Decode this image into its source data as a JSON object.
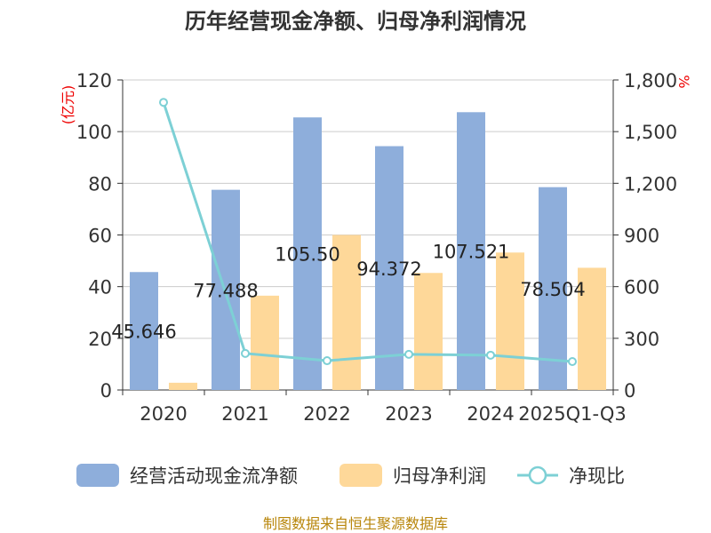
{
  "chart_data": {
    "type": "bar+line",
    "title": "历年经营现金净额、归母净利润情况",
    "categories": [
      "2020",
      "2021",
      "2022",
      "2023",
      "2024",
      "2025Q1-Q3"
    ],
    "series": [
      {
        "name": "经营活动现金流净额",
        "type": "bar",
        "axis": "left",
        "color": "#8eaedb",
        "values": [
          45.646,
          77.488,
          105.5,
          94.372,
          107.521,
          78.504
        ],
        "labels": [
          "45.646",
          "77.488",
          "105.50",
          "94.372",
          "107.521",
          "78.504"
        ]
      },
      {
        "name": "归母净利润",
        "type": "bar",
        "axis": "left",
        "color": "#fed899",
        "values": [
          2.8,
          36.5,
          60.0,
          45.3,
          53.2,
          47.3
        ]
      },
      {
        "name": "净现比",
        "type": "line",
        "axis": "right",
        "color": "#7dd0d5",
        "values": [
          1670,
          212,
          170,
          207,
          202,
          165
        ]
      }
    ],
    "left_axis": {
      "unit": "(亿元)",
      "ylim": [
        0,
        120
      ],
      "ticks": [
        0,
        20,
        40,
        60,
        80,
        100,
        120
      ]
    },
    "right_axis": {
      "unit": "%",
      "ylim": [
        0,
        1800
      ],
      "ticks": [
        "0",
        "300",
        "600",
        "900",
        "1,200",
        "1,500",
        "1,800"
      ]
    },
    "grid": true,
    "legend_position": "bottom"
  },
  "source": "制图数据来自恒生聚源数据库"
}
